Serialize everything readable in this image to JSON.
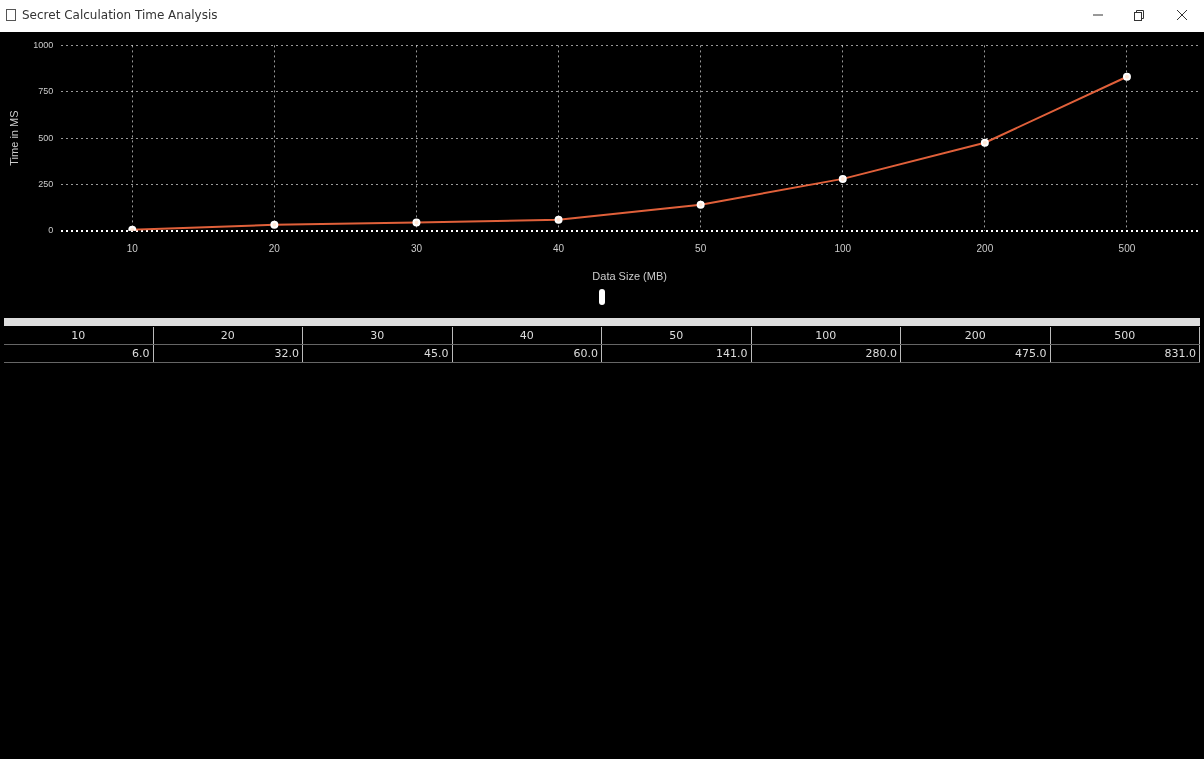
{
  "chart_data": {
    "type": "line",
    "title": "Secret Calculation Time Analysis",
    "xlabel": "Data Size (MB)",
    "ylabel": "Time in MS",
    "categories": [
      "10",
      "20",
      "30",
      "40",
      "50",
      "100",
      "200",
      "500"
    ],
    "series": [
      {
        "color": "#e0603a",
        "values": [
          6,
          32,
          45,
          60,
          141,
          280,
          475,
          831
        ],
        "value_labels": [
          "6.0",
          "32.0",
          "45.0",
          "60.0",
          "141.0",
          "280.0",
          "475.0",
          "831.0"
        ]
      }
    ],
    "ylim": [
      0,
      1000
    ],
    "yticks": [
      0,
      250,
      500,
      750,
      1000
    ],
    "grid": true,
    "legend": false,
    "marker": "circle",
    "line_style": "solid"
  }
}
